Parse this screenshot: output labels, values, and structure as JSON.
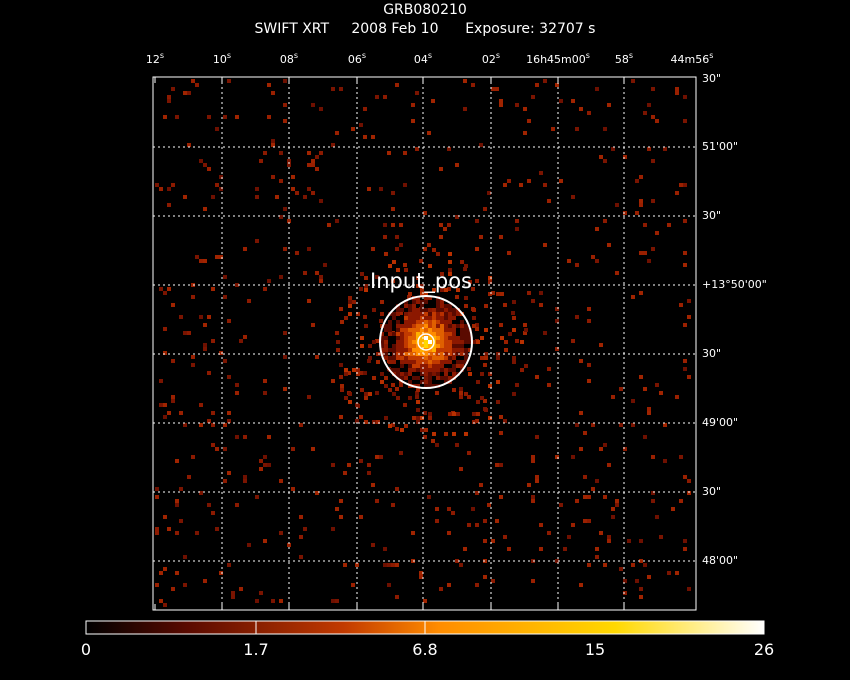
{
  "header": {
    "object": "GRB080210",
    "instrument": "SWIFT XRT",
    "date": "2008 Feb 10",
    "exposure": "Exposure: 32707 s"
  },
  "ra_ticks": [
    {
      "text": "12",
      "unit": "s"
    },
    {
      "text": "10",
      "unit": "s"
    },
    {
      "text": "08",
      "unit": "s"
    },
    {
      "text": "06",
      "unit": "s"
    },
    {
      "text": "04",
      "unit": "s"
    },
    {
      "text": "02",
      "unit": "s"
    },
    {
      "text": "16h45m00",
      "unit": "s"
    },
    {
      "text": "58",
      "unit": "s"
    },
    {
      "text": "44m56",
      "unit": "s"
    }
  ],
  "dec_ticks": [
    "30\"",
    "51'00\"",
    "30\"",
    "+13°50'00\"",
    "30\"",
    "49'00\"",
    "30\"",
    "48'00\""
  ],
  "region_label": "Input_pos",
  "colorbar": {
    "ticks": [
      "0",
      "1.7",
      "6.8",
      "15",
      "26"
    ],
    "values": [
      0,
      1.7,
      6.8,
      15,
      26
    ],
    "stops": [
      "#000000",
      "#5a0a00",
      "#c23a00",
      "#ff8c00",
      "#ffd800",
      "#ffffff"
    ]
  },
  "colors": {
    "grid": "#ffffff",
    "frame": "#ffffff",
    "region": "#ffffff",
    "background": "#000000"
  }
}
